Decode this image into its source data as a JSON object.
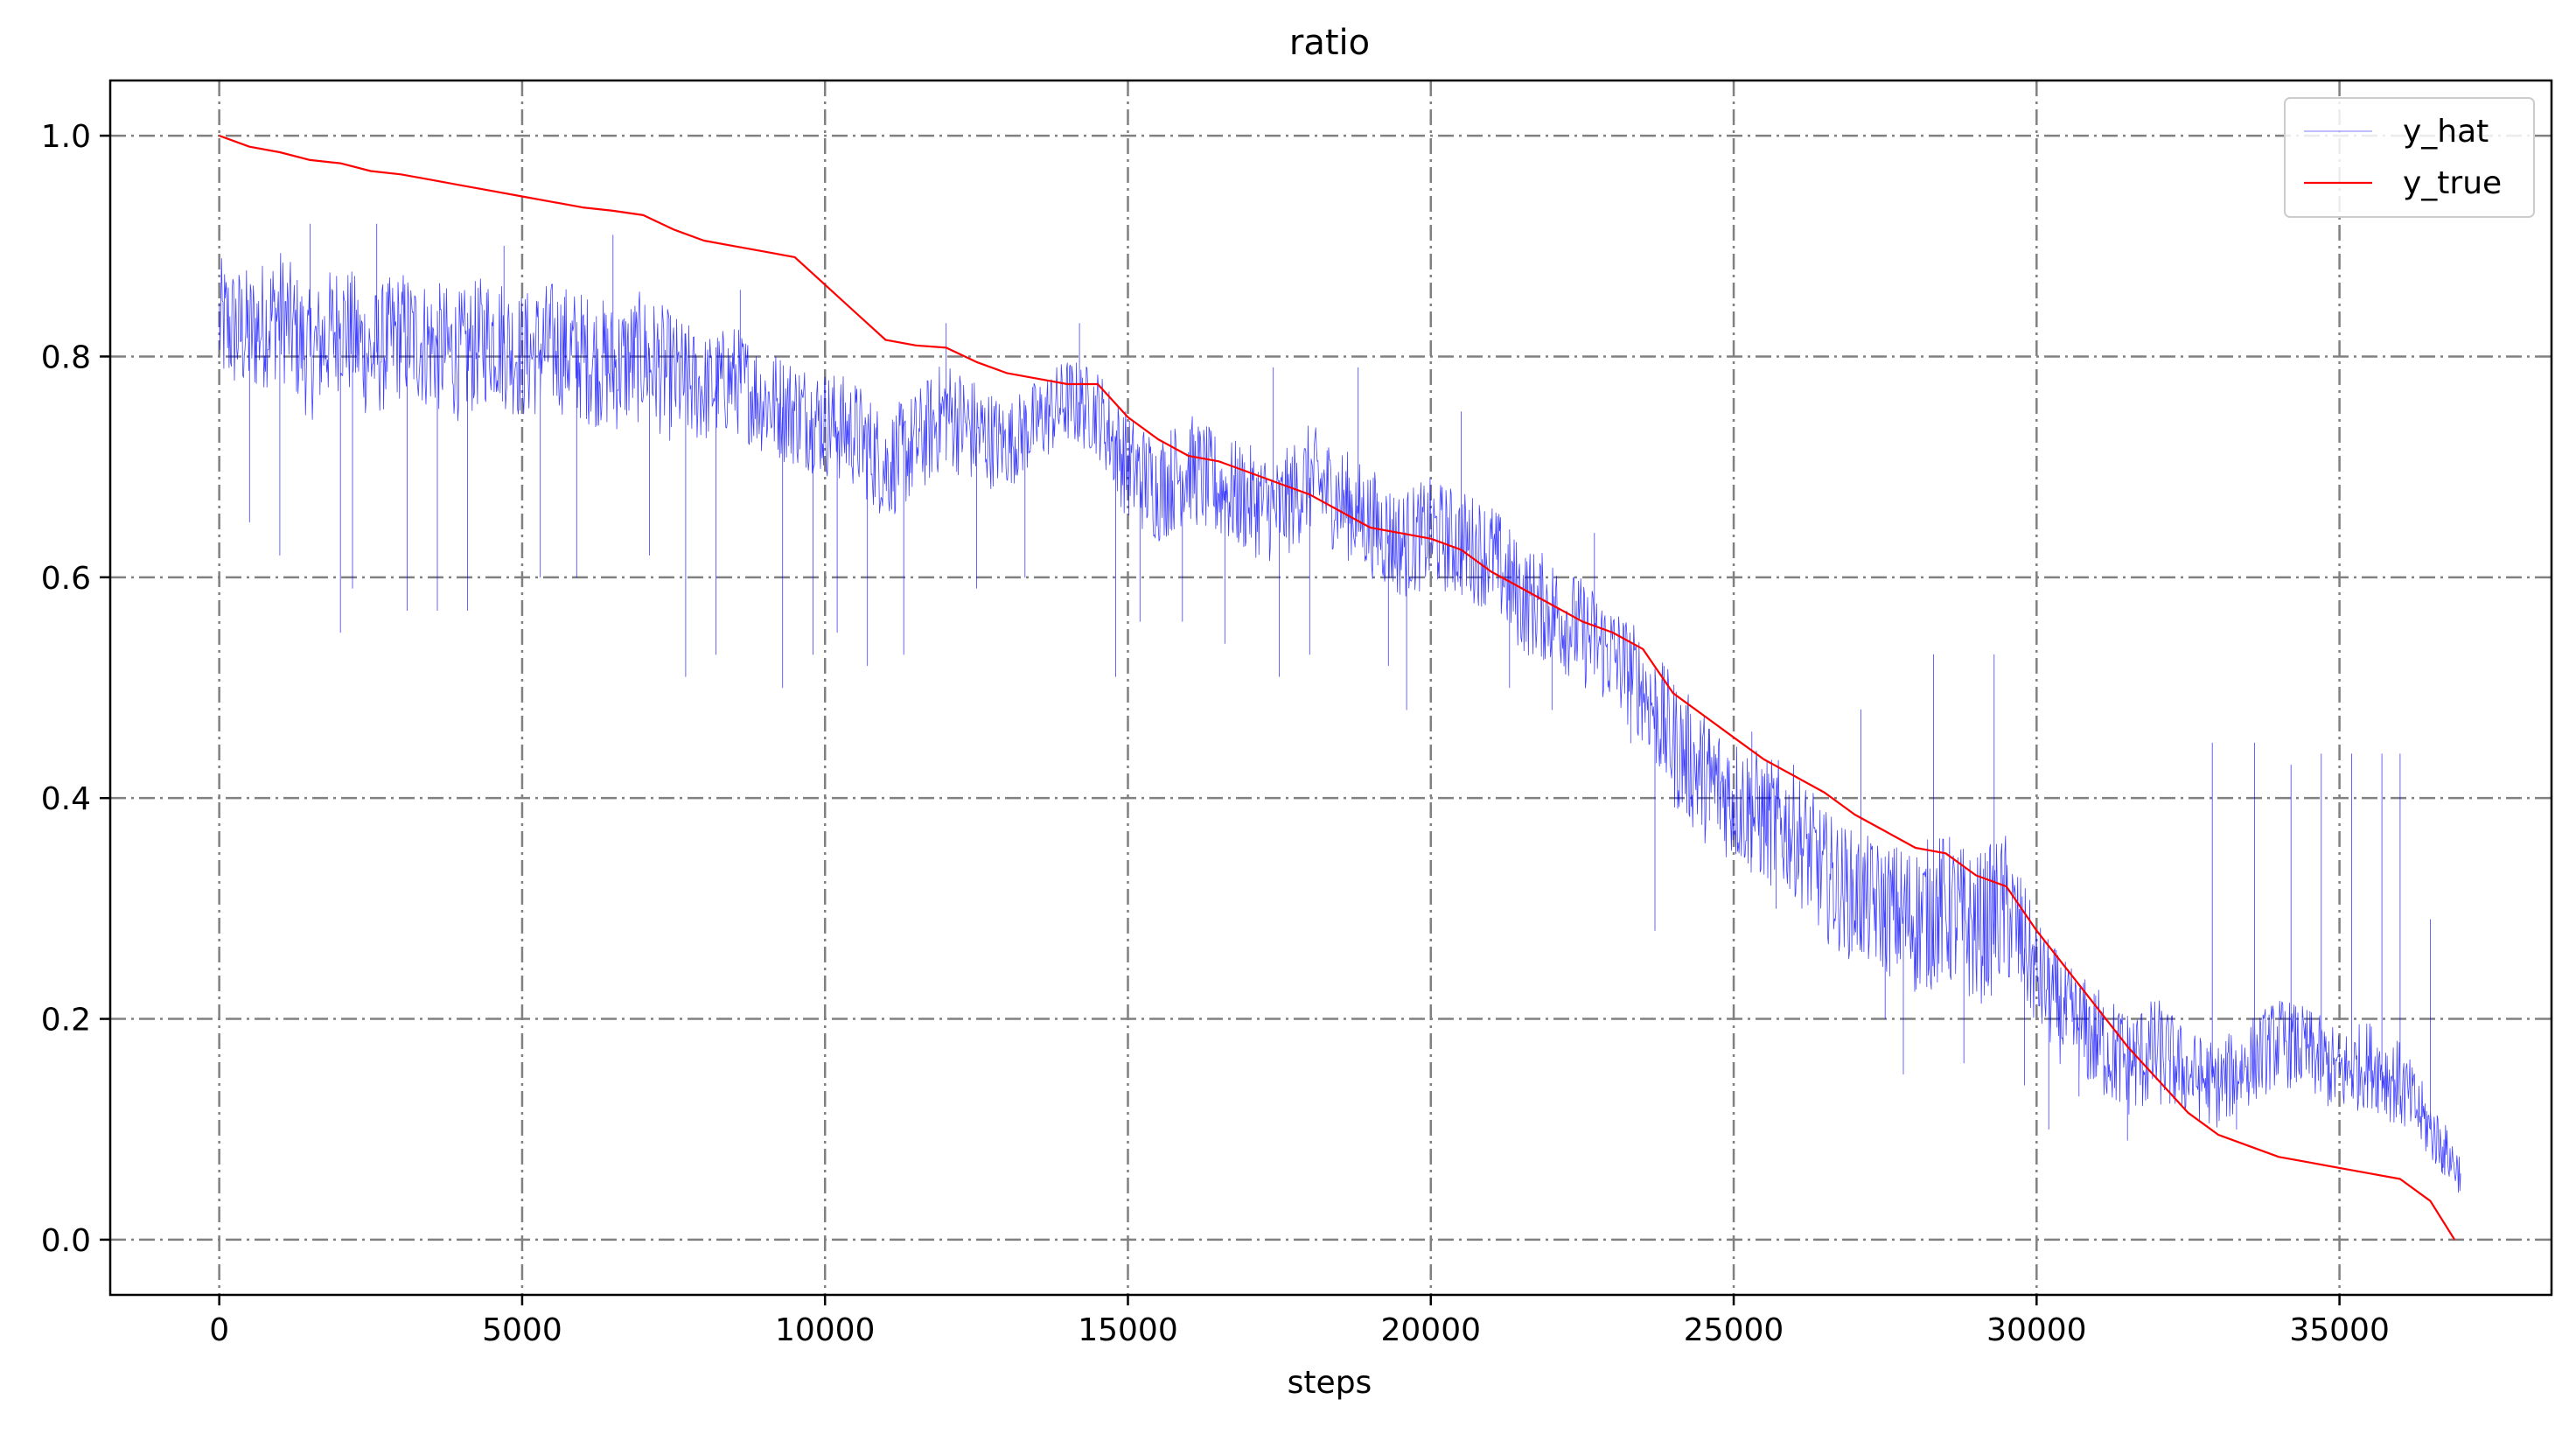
{
  "chart_data": {
    "type": "line",
    "title": "ratio",
    "xlabel": "steps",
    "ylabel": "",
    "xlim": [
      -1800,
      38500
    ],
    "ylim": [
      -0.05,
      1.05
    ],
    "grid": true,
    "grid_style": "dash-dot",
    "legend_position": "top-right",
    "x_ticks": [
      0,
      5000,
      10000,
      15000,
      20000,
      25000,
      30000,
      35000
    ],
    "x_tick_labels": [
      "0",
      "5000",
      "10000",
      "15000",
      "20000",
      "25000",
      "30000",
      "35000"
    ],
    "y_ticks": [
      0.0,
      0.2,
      0.4,
      0.6,
      0.8,
      1.0
    ],
    "y_tick_labels": [
      "0.0",
      "0.2",
      "0.4",
      "0.6",
      "0.8",
      "1.0"
    ],
    "series": [
      {
        "name": "y_hat",
        "color": "#0000ff",
        "line_width": "thin",
        "x": [
          0,
          500,
          1000,
          1500,
          2000,
          2500,
          3000,
          3500,
          4000,
          4500,
          5000,
          5500,
          6000,
          6500,
          7000,
          7500,
          8000,
          8500,
          9000,
          9500,
          10000,
          10500,
          11000,
          11500,
          12000,
          12500,
          13000,
          13500,
          14000,
          14500,
          15000,
          15500,
          16000,
          16500,
          17000,
          17500,
          18000,
          18500,
          19000,
          19500,
          20000,
          20500,
          21000,
          21500,
          22000,
          22500,
          23000,
          23500,
          24000,
          24500,
          25000,
          25500,
          26000,
          26500,
          27000,
          27500,
          28000,
          28500,
          29000,
          29500,
          30000,
          30500,
          31000,
          31500,
          32000,
          32500,
          33000,
          33500,
          34000,
          34500,
          35000,
          35500,
          36000,
          36500,
          37000
        ],
        "y": [
          0.83,
          0.82,
          0.84,
          0.8,
          0.83,
          0.8,
          0.82,
          0.81,
          0.8,
          0.82,
          0.8,
          0.81,
          0.8,
          0.79,
          0.8,
          0.78,
          0.77,
          0.78,
          0.76,
          0.75,
          0.74,
          0.73,
          0.7,
          0.72,
          0.75,
          0.73,
          0.72,
          0.74,
          0.76,
          0.75,
          0.7,
          0.68,
          0.7,
          0.68,
          0.67,
          0.66,
          0.69,
          0.67,
          0.65,
          0.63,
          0.64,
          0.63,
          0.62,
          0.58,
          0.57,
          0.55,
          0.53,
          0.5,
          0.45,
          0.42,
          0.4,
          0.38,
          0.37,
          0.33,
          0.31,
          0.3,
          0.29,
          0.3,
          0.28,
          0.3,
          0.24,
          0.2,
          0.18,
          0.16,
          0.17,
          0.15,
          0.14,
          0.16,
          0.18,
          0.17,
          0.15,
          0.16,
          0.14,
          0.1,
          0.06
        ],
        "noise_amplitude": [
          0.06,
          0.06,
          0.06,
          0.06,
          0.06,
          0.06,
          0.06,
          0.06,
          0.06,
          0.06,
          0.06,
          0.06,
          0.06,
          0.06,
          0.06,
          0.06,
          0.05,
          0.05,
          0.05,
          0.05,
          0.05,
          0.05,
          0.05,
          0.05,
          0.05,
          0.05,
          0.04,
          0.04,
          0.04,
          0.04,
          0.05,
          0.05,
          0.05,
          0.05,
          0.05,
          0.05,
          0.05,
          0.05,
          0.05,
          0.05,
          0.05,
          0.05,
          0.05,
          0.05,
          0.05,
          0.05,
          0.05,
          0.05,
          0.06,
          0.06,
          0.06,
          0.06,
          0.06,
          0.06,
          0.06,
          0.06,
          0.07,
          0.07,
          0.07,
          0.07,
          0.05,
          0.05,
          0.05,
          0.05,
          0.05,
          0.04,
          0.04,
          0.04,
          0.04,
          0.04,
          0.04,
          0.04,
          0.04,
          0.03,
          0.02
        ],
        "spikes": [
          {
            "x": 500,
            "y": 0.65
          },
          {
            "x": 1000,
            "y": 0.62
          },
          {
            "x": 1500,
            "y": 0.92
          },
          {
            "x": 2000,
            "y": 0.55
          },
          {
            "x": 2200,
            "y": 0.59
          },
          {
            "x": 2600,
            "y": 0.92
          },
          {
            "x": 3100,
            "y": 0.57
          },
          {
            "x": 3600,
            "y": 0.57
          },
          {
            "x": 4100,
            "y": 0.57
          },
          {
            "x": 4700,
            "y": 0.9
          },
          {
            "x": 5300,
            "y": 0.6
          },
          {
            "x": 5900,
            "y": 0.6
          },
          {
            "x": 6500,
            "y": 0.91
          },
          {
            "x": 7100,
            "y": 0.62
          },
          {
            "x": 7700,
            "y": 0.51
          },
          {
            "x": 8200,
            "y": 0.53
          },
          {
            "x": 8600,
            "y": 0.86
          },
          {
            "x": 9300,
            "y": 0.5
          },
          {
            "x": 9800,
            "y": 0.53
          },
          {
            "x": 10200,
            "y": 0.55
          },
          {
            "x": 10700,
            "y": 0.52
          },
          {
            "x": 11300,
            "y": 0.53
          },
          {
            "x": 12000,
            "y": 0.83
          },
          {
            "x": 12500,
            "y": 0.59
          },
          {
            "x": 13300,
            "y": 0.6
          },
          {
            "x": 14200,
            "y": 0.83
          },
          {
            "x": 14800,
            "y": 0.51
          },
          {
            "x": 15200,
            "y": 0.56
          },
          {
            "x": 15900,
            "y": 0.56
          },
          {
            "x": 16600,
            "y": 0.54
          },
          {
            "x": 17400,
            "y": 0.79
          },
          {
            "x": 17500,
            "y": 0.51
          },
          {
            "x": 18000,
            "y": 0.53
          },
          {
            "x": 18800,
            "y": 0.79
          },
          {
            "x": 19300,
            "y": 0.52
          },
          {
            "x": 19600,
            "y": 0.48
          },
          {
            "x": 20500,
            "y": 0.75
          },
          {
            "x": 21300,
            "y": 0.5
          },
          {
            "x": 22000,
            "y": 0.48
          },
          {
            "x": 22700,
            "y": 0.64
          },
          {
            "x": 23300,
            "y": 0.45
          },
          {
            "x": 23700,
            "y": 0.28
          },
          {
            "x": 24600,
            "y": 0.38
          },
          {
            "x": 25300,
            "y": 0.46
          },
          {
            "x": 25700,
            "y": 0.3
          },
          {
            "x": 26600,
            "y": 0.35
          },
          {
            "x": 27100,
            "y": 0.48
          },
          {
            "x": 27500,
            "y": 0.2
          },
          {
            "x": 27800,
            "y": 0.15
          },
          {
            "x": 28300,
            "y": 0.53
          },
          {
            "x": 28800,
            "y": 0.16
          },
          {
            "x": 29300,
            "y": 0.53
          },
          {
            "x": 29800,
            "y": 0.14
          },
          {
            "x": 30200,
            "y": 0.1
          },
          {
            "x": 30700,
            "y": 0.13
          },
          {
            "x": 31500,
            "y": 0.09
          },
          {
            "x": 32200,
            "y": 0.16
          },
          {
            "x": 32900,
            "y": 0.45
          },
          {
            "x": 33300,
            "y": 0.1
          },
          {
            "x": 33600,
            "y": 0.45
          },
          {
            "x": 34200,
            "y": 0.43
          },
          {
            "x": 34700,
            "y": 0.44
          },
          {
            "x": 35200,
            "y": 0.44
          },
          {
            "x": 35700,
            "y": 0.44
          },
          {
            "x": 36000,
            "y": 0.44
          },
          {
            "x": 36500,
            "y": 0.29
          },
          {
            "x": 36700,
            "y": 0.06
          }
        ]
      },
      {
        "name": "y_true",
        "color": "#ff0000",
        "line_width": "medium",
        "x": [
          0,
          500,
          1000,
          1500,
          2000,
          2500,
          3000,
          3500,
          4000,
          4500,
          5000,
          5500,
          6000,
          6500,
          7000,
          7500,
          8000,
          8500,
          9000,
          9500,
          10000,
          10500,
          11000,
          11500,
          12000,
          12500,
          13000,
          13500,
          14000,
          14500,
          15000,
          15500,
          16000,
          16500,
          17000,
          17500,
          18000,
          18500,
          19000,
          19500,
          20000,
          20500,
          21000,
          21500,
          22000,
          22500,
          23000,
          23500,
          24000,
          24500,
          25000,
          25500,
          26000,
          26500,
          27000,
          27500,
          28000,
          28500,
          29000,
          29500,
          30000,
          30500,
          31000,
          31500,
          32000,
          32500,
          33000,
          33500,
          34000,
          34500,
          35000,
          35500,
          36000,
          36500,
          36900
        ],
        "y": [
          1.0,
          0.99,
          0.985,
          0.978,
          0.975,
          0.968,
          0.965,
          0.96,
          0.955,
          0.95,
          0.945,
          0.94,
          0.935,
          0.932,
          0.928,
          0.915,
          0.905,
          0.9,
          0.895,
          0.89,
          0.865,
          0.84,
          0.815,
          0.81,
          0.808,
          0.795,
          0.785,
          0.78,
          0.775,
          0.775,
          0.745,
          0.725,
          0.71,
          0.705,
          0.695,
          0.685,
          0.675,
          0.66,
          0.645,
          0.64,
          0.635,
          0.625,
          0.605,
          0.59,
          0.575,
          0.56,
          0.55,
          0.535,
          0.495,
          0.475,
          0.455,
          0.435,
          0.42,
          0.405,
          0.385,
          0.37,
          0.355,
          0.35,
          0.33,
          0.32,
          0.28,
          0.245,
          0.21,
          0.175,
          0.145,
          0.115,
          0.095,
          0.085,
          0.075,
          0.07,
          0.065,
          0.06,
          0.055,
          0.035,
          0.0
        ]
      }
    ]
  }
}
